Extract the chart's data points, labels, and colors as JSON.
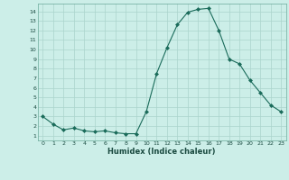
{
  "x": [
    0,
    1,
    2,
    3,
    4,
    5,
    6,
    7,
    8,
    9,
    10,
    11,
    12,
    13,
    14,
    15,
    16,
    17,
    18,
    19,
    20,
    21,
    22,
    23
  ],
  "y": [
    3.0,
    2.2,
    1.6,
    1.8,
    1.5,
    1.4,
    1.5,
    1.3,
    1.2,
    1.2,
    3.5,
    7.5,
    10.2,
    12.6,
    13.9,
    14.2,
    14.3,
    12.0,
    9.0,
    8.5,
    6.8,
    5.5,
    4.2,
    3.5
  ],
  "xlabel": "Humidex (Indice chaleur)",
  "xlim": [
    -0.5,
    23.5
  ],
  "ylim": [
    0.5,
    14.8
  ],
  "yticks": [
    1,
    2,
    3,
    4,
    5,
    6,
    7,
    8,
    9,
    10,
    11,
    12,
    13,
    14
  ],
  "xticks": [
    0,
    1,
    2,
    3,
    4,
    5,
    6,
    7,
    8,
    9,
    10,
    11,
    12,
    13,
    14,
    15,
    16,
    17,
    18,
    19,
    20,
    21,
    22,
    23
  ],
  "line_color": "#1a6b5a",
  "marker_color": "#1a6b5a",
  "bg_color": "#cceee8",
  "grid_color": "#aad4cc"
}
